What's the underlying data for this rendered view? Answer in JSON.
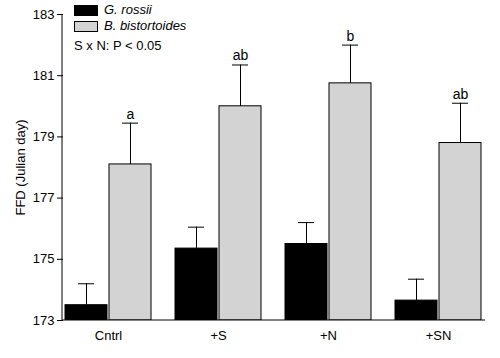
{
  "chart_data": {
    "type": "bar",
    "y_label": "FFD (Julian day)",
    "annotation": "S x N: P < 0.05",
    "categories": [
      "Cntrl",
      "+S",
      "+N",
      "+SN"
    ],
    "series": [
      {
        "name": "G. rossii",
        "color": "#000000",
        "values": [
          173.5,
          175.35,
          175.5,
          173.65
        ],
        "errors": [
          0.7,
          0.7,
          0.7,
          0.7
        ]
      },
      {
        "name": "B. bistortoides",
        "color": "#d3d3d3",
        "values": [
          178.1,
          180.0,
          180.75,
          178.8
        ],
        "errors": [
          1.35,
          1.35,
          1.25,
          1.3
        ],
        "letters": [
          "a",
          "ab",
          "b",
          "ab"
        ]
      }
    ],
    "ylim": [
      173,
      183
    ],
    "yticks": [
      173,
      175,
      177,
      179,
      181,
      183
    ],
    "legend": "upper left"
  }
}
